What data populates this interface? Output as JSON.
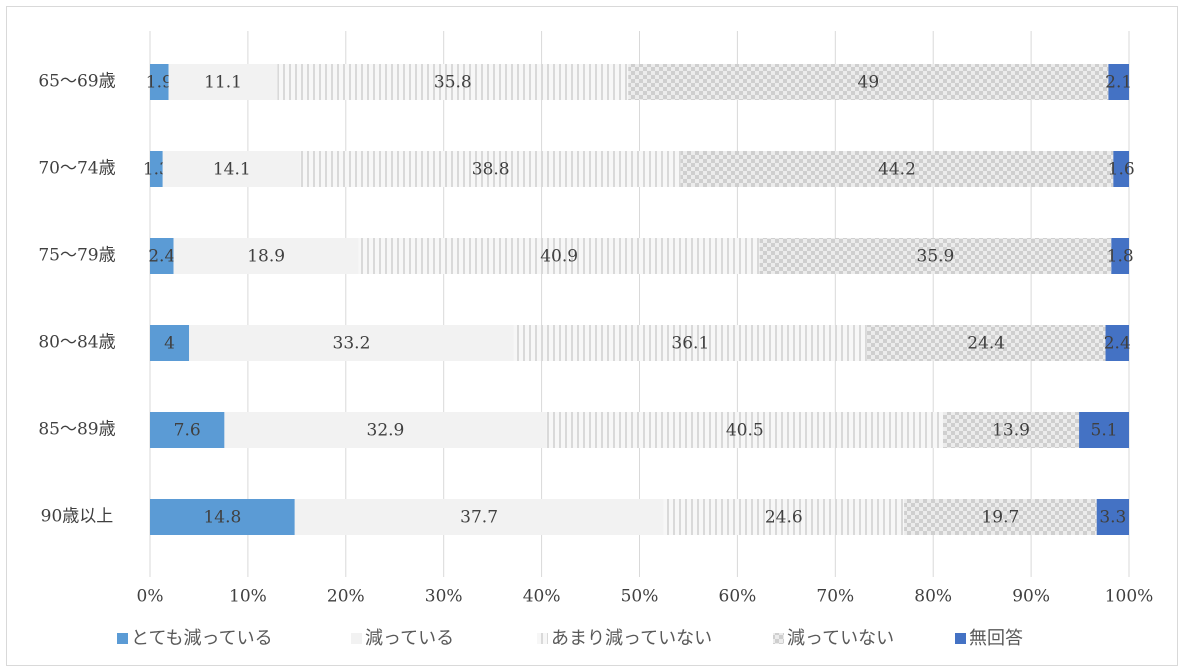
{
  "chart_data": {
    "type": "bar",
    "orientation": "horizontal",
    "stacked": "percent",
    "categories": [
      "65～69歳",
      "70～74歳",
      "75～79歳",
      "80～84歳",
      "85～89歳",
      "90歳以上"
    ],
    "series": [
      {
        "name": "とても減っている",
        "values": [
          1.9,
          1.3,
          2.4,
          4,
          7.6,
          14.8
        ],
        "labels": [
          "1.9",
          "1.3",
          "2.4",
          "4",
          "7.6",
          "14.8"
        ],
        "color": "#5b9bd5",
        "pattern": "solid"
      },
      {
        "name": "減っている",
        "values": [
          11.1,
          14.1,
          18.9,
          33.2,
          32.9,
          37.7
        ],
        "labels": [
          "11.1",
          "14.1",
          "18.9",
          "33.2",
          "32.9",
          "37.7"
        ],
        "color": "#f2f2f2",
        "pattern": "solid"
      },
      {
        "name": "あまり減っていない",
        "values": [
          35.8,
          38.8,
          40.9,
          36.1,
          40.5,
          24.6
        ],
        "labels": [
          "35.8",
          "38.8",
          "40.9",
          "36.1",
          "40.5",
          "24.6"
        ],
        "color": "#e6e6e6",
        "pattern": "vertical-stripes"
      },
      {
        "name": "減っていない",
        "values": [
          49,
          44.2,
          35.9,
          24.4,
          13.9,
          19.7
        ],
        "labels": [
          "49",
          "44.2",
          "35.9",
          "24.4",
          "13.9",
          "19.7"
        ],
        "color": "#d9d9d9",
        "pattern": "checker"
      },
      {
        "name": "無回答",
        "values": [
          2.1,
          1.6,
          1.8,
          2.4,
          5.1,
          3.3
        ],
        "labels": [
          "2.1",
          "1.6",
          "1.8",
          "2.4",
          "5.1",
          "3.3"
        ],
        "color": "#4472c4",
        "pattern": "solid"
      }
    ],
    "xlim": [
      0,
      100
    ],
    "xticks": [
      "0%",
      "10%",
      "20%",
      "30%",
      "40%",
      "50%",
      "60%",
      "70%",
      "80%",
      "90%",
      "100%"
    ],
    "grid": "vertical",
    "legend": "bottom",
    "title": "",
    "xlabel": "",
    "ylabel": ""
  }
}
